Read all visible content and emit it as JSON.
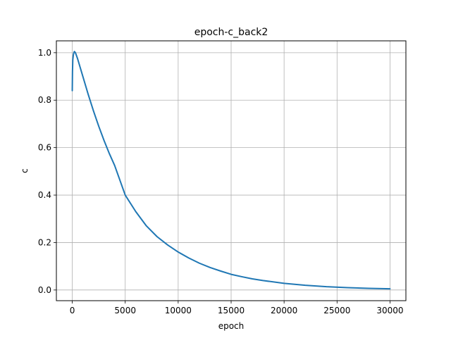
{
  "chart_data": {
    "type": "line",
    "title": "epoch-c_back2",
    "xlabel": "epoch",
    "ylabel": "c",
    "xlim": [
      -1500,
      31500
    ],
    "ylim": [
      -0.045,
      1.05
    ],
    "grid": true,
    "x_ticks": [
      0,
      5000,
      10000,
      15000,
      20000,
      25000,
      30000
    ],
    "x_tick_labels": [
      "0",
      "5000",
      "10000",
      "15000",
      "20000",
      "25000",
      "30000"
    ],
    "y_ticks": [
      0.0,
      0.2,
      0.4,
      0.6,
      0.8,
      1.0
    ],
    "y_tick_labels": [
      "0.0",
      "0.2",
      "0.4",
      "0.6",
      "0.8",
      "1.0"
    ],
    "colors": {
      "line": "#1f77b4",
      "grid": "#b0b0b0",
      "axes": "#000000"
    },
    "series": [
      {
        "x": [
          0,
          20,
          50,
          100,
          150,
          200,
          300,
          500,
          1000,
          1500,
          2000,
          2500,
          3000,
          3500,
          4000,
          5000,
          6000,
          7000,
          8000,
          9000,
          10000,
          11000,
          12000,
          13000,
          14000,
          15000,
          16000,
          17000,
          18000,
          20000,
          22000,
          24000,
          26000,
          28000,
          30000
        ],
        "y": [
          0.84,
          0.92,
          0.97,
          0.99,
          1.0,
          1.005,
          1.0,
          0.975,
          0.9,
          0.825,
          0.755,
          0.69,
          0.63,
          0.575,
          0.525,
          0.4,
          0.33,
          0.27,
          0.225,
          0.19,
          0.16,
          0.135,
          0.113,
          0.095,
          0.08,
          0.066,
          0.056,
          0.047,
          0.04,
          0.028,
          0.02,
          0.014,
          0.01,
          0.007,
          0.005
        ]
      }
    ]
  }
}
